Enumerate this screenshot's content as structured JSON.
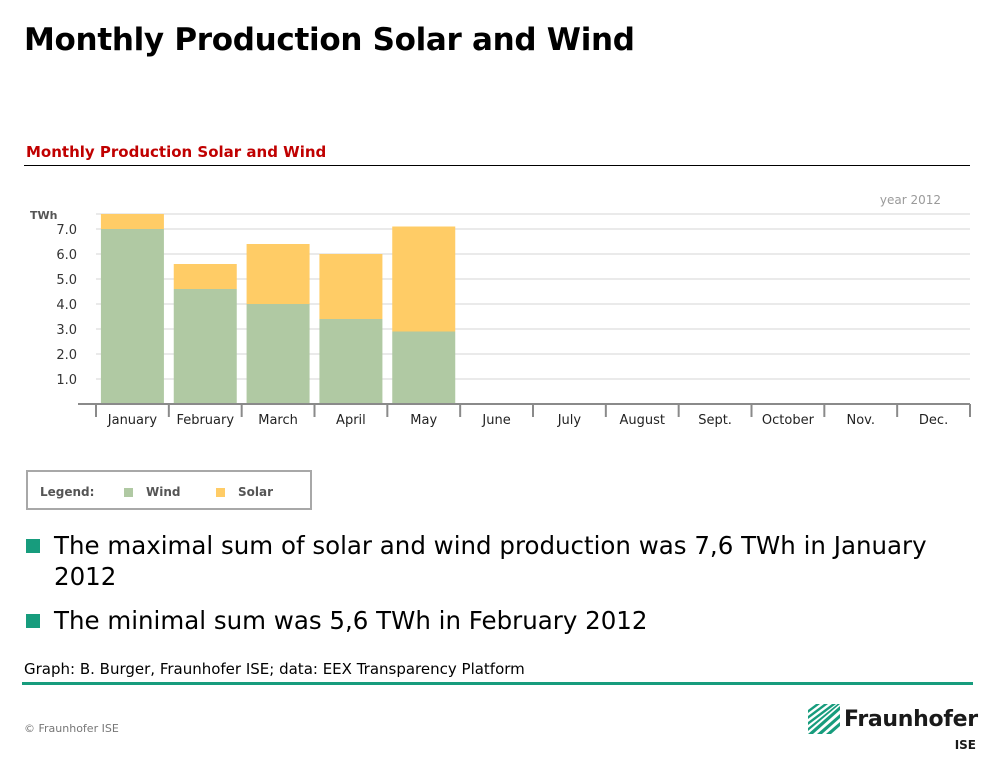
{
  "slide": {
    "title": "Monthly Production Solar and Wind",
    "bullets": [
      "The maximal sum of solar and wind production was 7,6 TWh in January 2012",
      "The minimal sum was 5,6 TWh in February 2012"
    ],
    "source": "Graph: B. Burger, Fraunhofer ISE; data: EEX Transparency Platform",
    "copyright": "© Fraunhofer ISE",
    "logo": {
      "name": "Fraunhofer",
      "sub": "ISE"
    }
  },
  "colors": {
    "wind": "#b0c9a3",
    "solar": "#ffcc66",
    "heading": "#c00000",
    "accent": "#179c7d"
  },
  "chart_data": {
    "type": "bar",
    "stacked": true,
    "title": "Monthly Production Solar and Wind",
    "annotation": "year 2012",
    "ylabel": "TWh",
    "ylim": [
      0,
      7.6
    ],
    "yticks": [
      1.0,
      2.0,
      3.0,
      4.0,
      5.0,
      6.0,
      7.0
    ],
    "ytick_labels": [
      "1.0",
      "2.0",
      "3.0",
      "4.0",
      "5.0",
      "6.0",
      "7.0"
    ],
    "grid": true,
    "legend_title": "Legend:",
    "legend_position": "bottom-left",
    "categories": [
      "January",
      "February",
      "March",
      "April",
      "May",
      "June",
      "July",
      "August",
      "Sept.",
      "October",
      "Nov.",
      "Dec."
    ],
    "series": [
      {
        "name": "Wind",
        "values": [
          7.0,
          4.6,
          4.0,
          3.4,
          2.9,
          null,
          null,
          null,
          null,
          null,
          null,
          null
        ]
      },
      {
        "name": "Solar",
        "values": [
          0.6,
          1.0,
          2.4,
          2.6,
          4.2,
          null,
          null,
          null,
          null,
          null,
          null,
          null
        ]
      }
    ]
  }
}
